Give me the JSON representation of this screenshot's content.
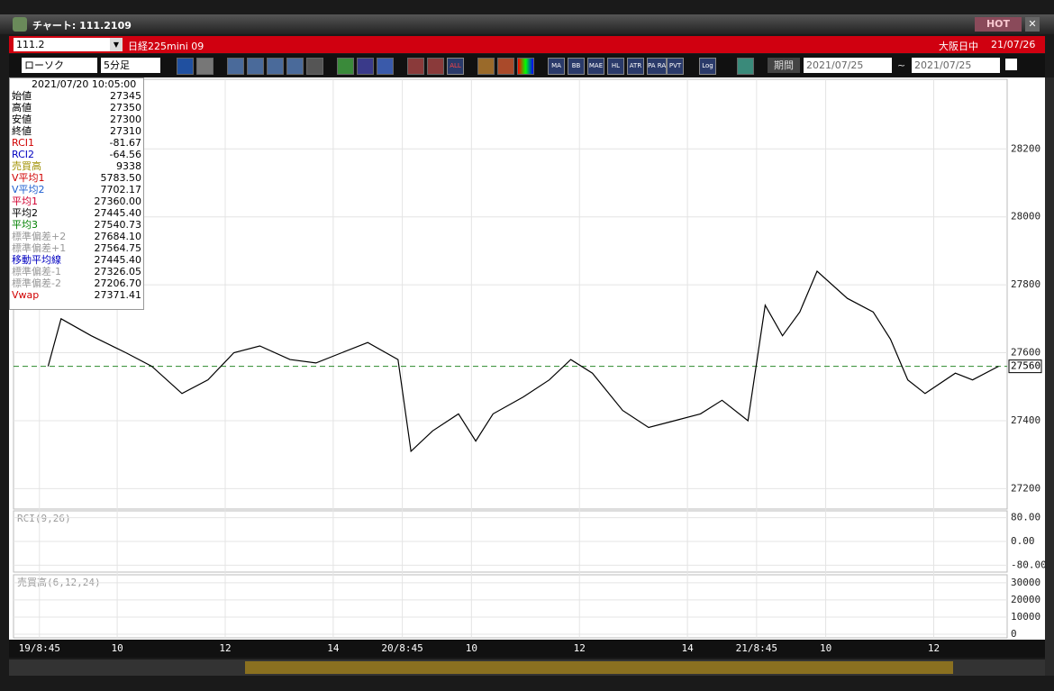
{
  "window": {
    "title": "チャート: 111.2109",
    "hot": "HOT"
  },
  "header": {
    "code": "111.2",
    "name": "日経225mini 09",
    "market": "大阪日中",
    "date": "21/07/26"
  },
  "toolbar": {
    "chart_type": "ローソク",
    "interval": "5分足",
    "buttons": [
      "ALL",
      "MA",
      "BB",
      "MAE",
      "HL",
      "ATR",
      "PA RA",
      "PVT",
      "Log"
    ],
    "period": "期間",
    "from": "2021/07/25",
    "tilde": "~",
    "to": "2021/07/25"
  },
  "info": {
    "datetime": "2021/07/20  10:05:00",
    "rows": [
      {
        "label": "始値",
        "value": "27345",
        "color": "#000000"
      },
      {
        "label": "高値",
        "value": "27350",
        "color": "#000000"
      },
      {
        "label": "安値",
        "value": "27300",
        "color": "#000000"
      },
      {
        "label": "終値",
        "value": "27310",
        "color": "#000000"
      },
      {
        "label": "RCI1",
        "value": "-81.67",
        "color": "#d00000"
      },
      {
        "label": "RCI2",
        "value": "-64.56",
        "color": "#0000c0"
      },
      {
        "label": "売買高",
        "value": "9338",
        "color": "#a09000"
      },
      {
        "label": "V平均1",
        "value": "5783.50",
        "color": "#d00000"
      },
      {
        "label": "V平均2",
        "value": "7702.17",
        "color": "#2060d0"
      },
      {
        "label": "平均1",
        "value": "27360.00",
        "color": "#d00030"
      },
      {
        "label": "平均2",
        "value": "27445.40",
        "color": "#000000"
      },
      {
        "label": "平均3",
        "value": "27540.73",
        "color": "#008000"
      },
      {
        "label": "標準偏差+2",
        "value": "27684.10",
        "color": "#999999"
      },
      {
        "label": "標準偏差+1",
        "value": "27564.75",
        "color": "#999999"
      },
      {
        "label": "移動平均線",
        "value": "27445.40",
        "color": "#0000c0"
      },
      {
        "label": "標準偏差-1",
        "value": "27326.05",
        "color": "#999999"
      },
      {
        "label": "標準偏差-2",
        "value": "27206.70",
        "color": "#999999"
      },
      {
        "label": "Vwap",
        "value": "27371.41",
        "color": "#d00000"
      }
    ]
  },
  "chart_data": {
    "type": "line",
    "x": [
      8,
      11,
      18,
      26,
      32,
      39,
      45,
      51,
      57,
      64,
      70,
      76,
      82,
      89,
      92,
      97,
      103,
      107,
      111,
      118,
      124,
      129,
      134,
      141,
      147,
      153,
      159,
      164,
      170,
      174,
      178,
      182,
      186,
      193,
      199,
      203,
      207,
      211,
      218,
      222,
      228
    ],
    "series": [
      {
        "name": "終値",
        "color": "#000000",
        "values": [
          27560,
          27700,
          27650,
          27600,
          27560,
          27480,
          27520,
          27600,
          27620,
          27580,
          27570,
          27600,
          27630,
          27580,
          27310,
          27370,
          27420,
          27340,
          27420,
          27470,
          27520,
          27580,
          27540,
          27430,
          27380,
          27400,
          27420,
          27460,
          27400,
          27740,
          27650,
          27720,
          27840,
          27760,
          27720,
          27640,
          27520,
          27480,
          27540,
          27520,
          27560
        ]
      }
    ],
    "xlim": [
      0,
      230
    ],
    "xticks": [
      {
        "value": 6,
        "label": "19/8:45"
      },
      {
        "value": 24,
        "label": "10"
      },
      {
        "value": 49,
        "label": "12"
      },
      {
        "value": 74,
        "label": "14"
      },
      {
        "value": 90,
        "label": "20/8:45"
      },
      {
        "value": 106,
        "label": "10"
      },
      {
        "value": 131,
        "label": "12"
      },
      {
        "value": 156,
        "label": "14"
      },
      {
        "value": 172,
        "label": "21/8:45"
      },
      {
        "value": 188,
        "label": "10"
      },
      {
        "value": 213,
        "label": "12"
      }
    ],
    "ylim": [
      27140,
      28405
    ],
    "yticks": [
      27200,
      27400,
      27600,
      27800,
      28000,
      28200
    ],
    "last_price": 27560,
    "grid": true
  },
  "rci": {
    "title": "RCI(9,26)",
    "ylim": [
      -100,
      100
    ],
    "yticks": [
      {
        "value": 80,
        "label": "80.00"
      },
      {
        "value": 0,
        "label": "0.00"
      },
      {
        "value": -80,
        "label": "-80.00"
      }
    ]
  },
  "volume": {
    "title": "売買高(6,12,24)",
    "ylim": [
      0,
      32000
    ],
    "yticks": [
      0,
      10000,
      20000,
      30000
    ]
  }
}
